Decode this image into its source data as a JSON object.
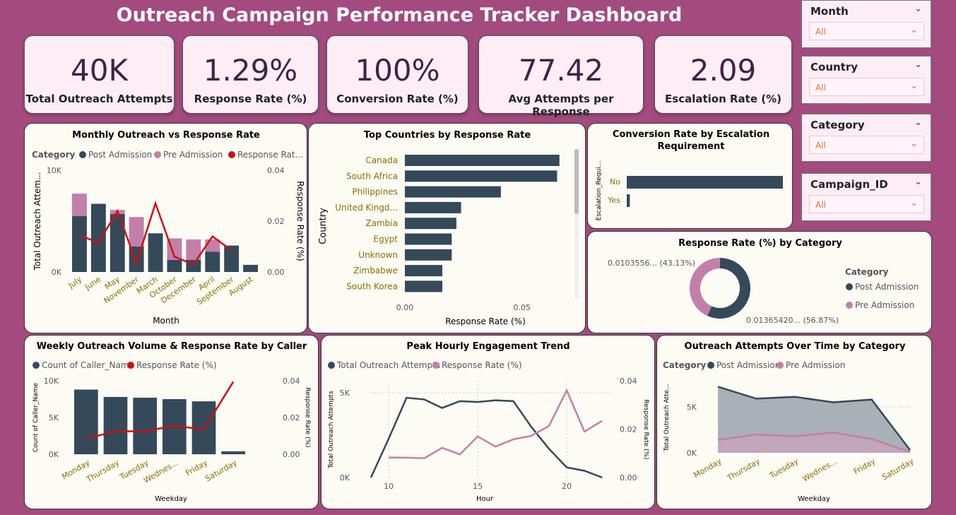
{
  "title": "Outreach Campaign Performance Tracker Dashboard",
  "kpis": [
    {
      "value": "40K",
      "label": "Total Outreach Attempts"
    },
    {
      "value": "1.29%",
      "label": "Response Rate (%)"
    },
    {
      "value": "100%",
      "label": "Conversion Rate (%)"
    },
    {
      "value": "77.42",
      "label": "Avg Attempts per Response"
    },
    {
      "value": "2.09",
      "label": "Escalation Rate (%)"
    }
  ],
  "slicers": [
    {
      "title": "Month",
      "value": "All"
    },
    {
      "title": "Country",
      "value": "All"
    },
    {
      "title": "Category",
      "value": "All"
    },
    {
      "title": "Campaign_ID",
      "value": "All"
    }
  ],
  "colors": {
    "dark": "#34495a",
    "pink": "#c47fa8",
    "red": "#cc1111",
    "gold": "#8a6d00",
    "bg": "#a34a7e"
  },
  "chart_data": [
    {
      "type": "bar",
      "title": "Monthly Outreach vs Response Rate",
      "legend_title": "Category",
      "legend": [
        "Post Admission",
        "Pre Admission",
        "Response Rat..."
      ],
      "categories": [
        "July",
        "June",
        "May",
        "November",
        "March",
        "October",
        "December",
        "April",
        "September",
        "August"
      ],
      "series": [
        {
          "name": "Post Admission",
          "values": [
            5500,
            6700,
            5700,
            2500,
            3800,
            1200,
            1200,
            2000,
            2600,
            700
          ]
        },
        {
          "name": "Pre Admission",
          "values": [
            2200,
            0,
            400,
            2900,
            0,
            2100,
            2000,
            1200,
            0,
            0
          ]
        },
        {
          "name": "Response Rat...",
          "axis": "right",
          "values": [
            0.0145,
            0.0115,
            0.024,
            0.0035,
            0.027,
            0.006,
            0.003,
            0.014,
            0.0085,
            null
          ]
        }
      ],
      "xlabel": "Month",
      "ylabel": "Total Outreach Attem...",
      "y2label": "Response Rate (%)",
      "yticks": [
        "0K",
        "10K"
      ],
      "y2ticks": [
        "0.00",
        "0.02",
        "0.04"
      ],
      "ylim": [
        0,
        10000
      ],
      "y2lim": [
        0,
        0.04
      ]
    },
    {
      "type": "bar",
      "title": "Top Countries by Response Rate",
      "categories": [
        "Canada",
        "South Africa",
        "Philippines",
        "United Kingd...",
        "Zambia",
        "Egypt",
        "Unknown",
        "Zimbabwe",
        "South Korea"
      ],
      "values": [
        0.066,
        0.065,
        0.041,
        0.024,
        0.022,
        0.02,
        0.02,
        0.016,
        0.016
      ],
      "xlabel": "Response Rate (%)",
      "ylabel": "Country",
      "xticks": [
        "0.00",
        "0.05"
      ],
      "xlim": [
        0,
        0.07
      ]
    },
    {
      "type": "bar",
      "title": "Conversion Rate by Escalation Requirement",
      "categories": [
        "No",
        "Yes"
      ],
      "values": [
        1.0,
        0.02
      ],
      "ylabel": "Escalation_Requi..."
    },
    {
      "type": "pie",
      "title": "Response Rate (%) by Category",
      "legend_title": "Category",
      "slices": [
        {
          "name": "Post Admission",
          "value": 56.87,
          "label": "0.01365420... (56.87%)"
        },
        {
          "name": "Pre Admission",
          "value": 43.13,
          "label": "0.0103556... (43.13%)"
        }
      ]
    },
    {
      "type": "bar",
      "title": "Weekly Outreach Volume & Response Rate by Caller",
      "legend": [
        "Count of Caller_Name",
        "Response Rate (%)"
      ],
      "categories": [
        "Monday",
        "Thursday",
        "Tuesday",
        "Wednes...",
        "Friday",
        "Saturday"
      ],
      "series": [
        {
          "name": "Count of Caller_Name",
          "values": [
            8800,
            7800,
            7700,
            7500,
            7200,
            400
          ]
        },
        {
          "name": "Response Rate (%)",
          "axis": "right",
          "values": [
            0.0085,
            0.0125,
            0.0125,
            0.0155,
            0.0135,
            0.0395
          ]
        }
      ],
      "xlabel": "Weekday",
      "ylabel": "Count of Caller_Name",
      "y2label": "Response Rate (%)",
      "yticks": [
        "0K",
        "5K",
        "10K"
      ],
      "y2ticks": [
        "0.00",
        "0.02",
        "0.04"
      ],
      "ylim": [
        0,
        10000
      ],
      "y2lim": [
        0,
        0.04
      ]
    },
    {
      "type": "line",
      "title": "Peak Hourly Engagement Trend",
      "legend": [
        "Total Outreach Attempts",
        "Response Rate (%)"
      ],
      "series": [
        {
          "name": "Total Outreach Attempts",
          "x": [
            9,
            10,
            11,
            12,
            13,
            14,
            15,
            16,
            17,
            18,
            19,
            20,
            21,
            22
          ],
          "values": [
            0,
            2300,
            4700,
            4600,
            4100,
            4500,
            4450,
            4550,
            4500,
            3000,
            1700,
            600,
            400,
            0
          ]
        },
        {
          "name": "Response Rate (%)",
          "axis": "right",
          "x": [
            10,
            11,
            12,
            13,
            14,
            15,
            16,
            17,
            18,
            19,
            20,
            21,
            22
          ],
          "values": [
            0.0083,
            0.0082,
            0.008,
            0.0123,
            0.0096,
            0.017,
            0.0128,
            0.0158,
            0.0172,
            0.0213,
            0.036,
            0.019,
            0.0235
          ]
        }
      ],
      "xlabel": "Hour",
      "ylabel": "Total Outreach Attempts",
      "y2label": "Response Rate (%)",
      "xticks": [
        "10",
        "15",
        "20"
      ],
      "yticks": [
        "0K",
        "5K"
      ],
      "y2ticks": [
        "0.00",
        "0.02",
        "0.04"
      ],
      "xlim": [
        9,
        22.5
      ],
      "ylim": [
        0,
        5700
      ],
      "y2lim": [
        0,
        0.04
      ]
    },
    {
      "type": "area",
      "title": "Outreach Attempts Over Time by Category",
      "legend_title": "Category",
      "legend": [
        "Post Admission",
        "Pre Admission"
      ],
      "categories": [
        "Monday",
        "Thursday",
        "Tuesday",
        "Wednes...",
        "Friday",
        "Saturday"
      ],
      "series": [
        {
          "name": "Post Admission",
          "values": [
            7200,
            5900,
            6100,
            5500,
            5800,
            300
          ]
        },
        {
          "name": "Pre Admission",
          "values": [
            1400,
            2000,
            1800,
            2200,
            1500,
            100
          ]
        }
      ],
      "xlabel": "Weekday",
      "ylabel": "Total Outreach Atte...",
      "yticks": [
        "0K",
        "5K"
      ],
      "ylim": [
        0,
        8000
      ]
    }
  ]
}
